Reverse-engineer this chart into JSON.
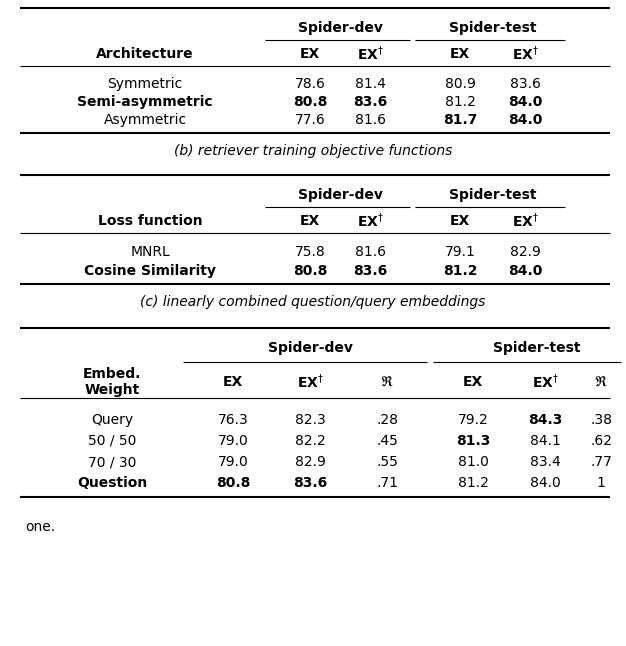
{
  "table_a": {
    "rows": [
      {
        "label": "Symmetric",
        "bold_label": false,
        "vals": [
          "78.6",
          "81.4",
          "80.9",
          "83.6"
        ],
        "bold": [
          false,
          false,
          false,
          false
        ]
      },
      {
        "label": "Semi-asymmetric",
        "bold_label": true,
        "vals": [
          "80.8",
          "83.6",
          "81.2",
          "84.0"
        ],
        "bold": [
          true,
          true,
          false,
          true
        ]
      },
      {
        "label": "Asymmetric",
        "bold_label": false,
        "vals": [
          "77.6",
          "81.6",
          "81.7",
          "84.0"
        ],
        "bold": [
          false,
          false,
          true,
          true
        ]
      }
    ],
    "caption": "(b) retriever training objective functions",
    "col0_label": "Architecture",
    "col0_bold": true
  },
  "table_b": {
    "rows": [
      {
        "label": "MNRL",
        "bold_label": false,
        "vals": [
          "75.8",
          "81.6",
          "79.1",
          "82.9"
        ],
        "bold": [
          false,
          false,
          false,
          false
        ]
      },
      {
        "label": "Cosine Similarity",
        "bold_label": true,
        "vals": [
          "80.8",
          "83.6",
          "81.2",
          "84.0"
        ],
        "bold": [
          true,
          true,
          true,
          true
        ]
      }
    ],
    "caption": "(c) linearly combined question/query embeddings",
    "col0_label": "Loss function",
    "col0_bold": true
  },
  "table_c": {
    "rows": [
      {
        "label": "Query",
        "bold_label": false,
        "vals": [
          "76.3",
          "82.3",
          ".28",
          "79.2",
          "84.3",
          ".38"
        ],
        "bold": [
          false,
          false,
          false,
          false,
          true,
          false
        ]
      },
      {
        "label": "50 / 50",
        "bold_label": false,
        "vals": [
          "79.0",
          "82.2",
          ".45",
          "81.3",
          "84.1",
          ".62"
        ],
        "bold": [
          false,
          false,
          false,
          true,
          false,
          false
        ]
      },
      {
        "label": "70 / 30",
        "bold_label": false,
        "vals": [
          "79.0",
          "82.9",
          ".55",
          "81.0",
          "83.4",
          ".77"
        ],
        "bold": [
          false,
          false,
          false,
          false,
          false,
          false
        ]
      },
      {
        "label": "Question",
        "bold_label": true,
        "vals": [
          "80.8",
          "83.6",
          ".71",
          "81.2",
          "84.0",
          "1"
        ],
        "bold": [
          true,
          true,
          false,
          false,
          false,
          false
        ]
      }
    ],
    "caption": "",
    "col0_label_line1": "Embed.",
    "col0_label_line2": "Weight",
    "col0_bold": true
  },
  "footer": "one.",
  "font_size": 10.0,
  "line_lw_thin": 0.8,
  "line_lw_thick": 1.5
}
